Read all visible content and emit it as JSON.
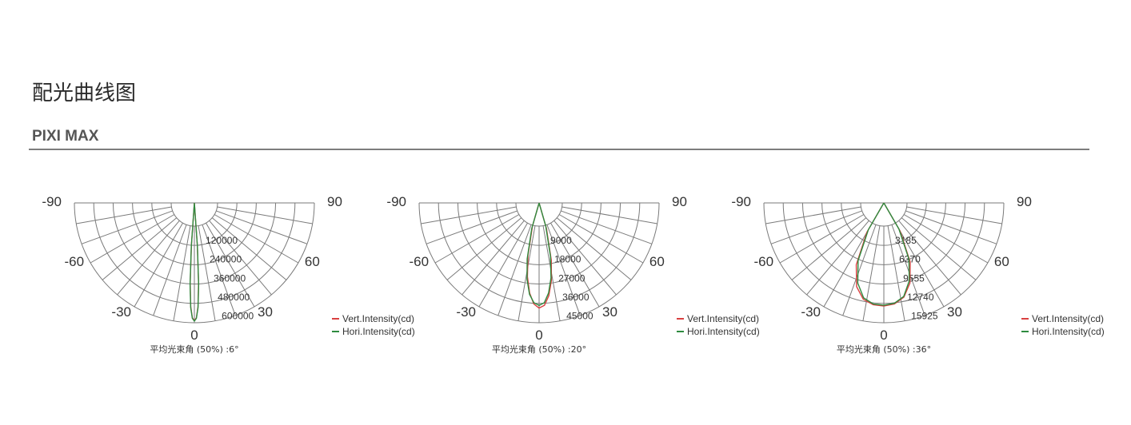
{
  "page": {
    "title": "配光曲线图",
    "subtitle": "PIXI MAX"
  },
  "colors": {
    "vertical": "#d94040",
    "horizontal": "#2e8b3f",
    "grid": "#7a7a7a"
  },
  "chart_data": [
    {
      "type": "polar-half",
      "angle_labels": [
        "-90",
        "-60",
        "-30",
        "0",
        "30",
        "60",
        "90"
      ],
      "radial_ticks": [
        "120000",
        "240000",
        "360000",
        "480000",
        "600000"
      ],
      "rmax": 600000,
      "caption": "平均光束角 (50%) :6°",
      "series": [
        {
          "name": "Vert.Intensity(cd)",
          "color_key": "vertical",
          "angles": [
            -6,
            -4,
            -3,
            -2,
            -1,
            0,
            1,
            2,
            3,
            4,
            6
          ],
          "values": [
            0,
            210000,
            400000,
            520000,
            575000,
            590000,
            575000,
            520000,
            400000,
            210000,
            0
          ]
        },
        {
          "name": "Hori.Intensity(cd)",
          "color_key": "horizontal",
          "angles": [
            -6,
            -4,
            -3,
            -2,
            -1,
            0,
            1,
            2,
            3,
            4,
            6
          ],
          "values": [
            0,
            220000,
            410000,
            525000,
            578000,
            592000,
            578000,
            525000,
            410000,
            220000,
            0
          ]
        }
      ]
    },
    {
      "type": "polar-half",
      "angle_labels": [
        "-90",
        "-60",
        "-30",
        "0",
        "30",
        "60",
        "90"
      ],
      "radial_ticks": [
        "9000",
        "18000",
        "27000",
        "36000",
        "45000"
      ],
      "rmax": 45000,
      "caption": "平均光束角 (50%) :20°",
      "series": [
        {
          "name": "Vert.Intensity(cd)",
          "color_key": "vertical",
          "angles": [
            -20,
            -16,
            -12,
            -9,
            -6,
            -3,
            0,
            3,
            6,
            9,
            12,
            16,
            20
          ],
          "values": [
            0,
            9000,
            20000,
            28000,
            34000,
            38000,
            39500,
            38500,
            35000,
            29500,
            22000,
            10000,
            0
          ]
        },
        {
          "name": "Hori.Intensity(cd)",
          "color_key": "horizontal",
          "angles": [
            -20,
            -16,
            -12,
            -9,
            -6,
            -3,
            0,
            3,
            6,
            9,
            12,
            16,
            20
          ],
          "values": [
            0,
            10000,
            21500,
            29000,
            34500,
            37500,
            38500,
            37500,
            34000,
            28500,
            20500,
            9000,
            0
          ]
        }
      ]
    },
    {
      "type": "polar-half",
      "angle_labels": [
        "-90",
        "-60",
        "-30",
        "0",
        "30",
        "60",
        "90"
      ],
      "radial_ticks": [
        "3185",
        "6370",
        "9555",
        "12740",
        "15925"
      ],
      "rmax": 15925,
      "caption": "平均光束角 (50%) :36°",
      "series": [
        {
          "name": "Vert.Intensity(cd)",
          "color_key": "vertical",
          "angles": [
            -36,
            -30,
            -24,
            -18,
            -12,
            -6,
            0,
            6,
            12,
            18,
            24,
            30,
            36
          ],
          "values": [
            0,
            4500,
            9000,
            11700,
            13100,
            13600,
            13700,
            13500,
            12800,
            11200,
            8600,
            4300,
            0
          ]
        },
        {
          "name": "Hori.Intensity(cd)",
          "color_key": "horizontal",
          "angles": [
            -36,
            -30,
            -24,
            -18,
            -12,
            -6,
            0,
            6,
            12,
            18,
            24,
            30,
            36
          ],
          "values": [
            0,
            4100,
            8400,
            11200,
            12900,
            13500,
            13600,
            13400,
            12700,
            10900,
            8200,
            4000,
            0
          ]
        }
      ]
    }
  ]
}
